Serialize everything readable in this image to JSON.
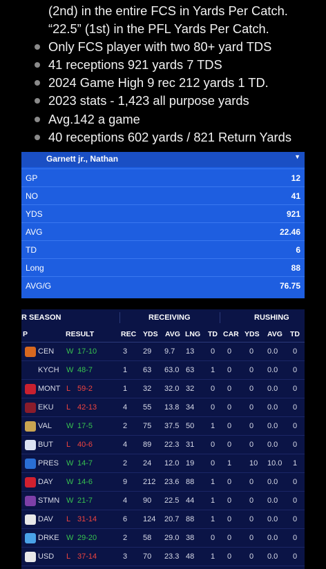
{
  "notes": [
    {
      "text": "(2nd) in the entire FCS in Yards Per Catch.",
      "bullet": false
    },
    {
      "text": "“22.5” (1st) in the PFL Yards Per Catch.",
      "bullet": false
    },
    {
      "text": "Only FCS player with two 80+ yard TDS",
      "bullet": true
    },
    {
      "text": "41 receptions 921 yards 7 TDS",
      "bullet": true
    },
    {
      "text": "2024 Game High 9 rec 212 yards 1 TD.",
      "bullet": true
    },
    {
      "text": "2023 stats - 1,423 all purpose yards",
      "bullet": true
    },
    {
      "text": "Avg.142 a game",
      "bullet": true
    },
    {
      "text": "40 receptions 602 yards / 821 Return Yards",
      "bullet": true
    }
  ],
  "card": {
    "player": "Garnett jr., Nathan",
    "caret_icon": "chevron-down-icon",
    "rows": [
      {
        "label": "GP",
        "value": "12"
      },
      {
        "label": "NO",
        "value": "41"
      },
      {
        "label": "YDS",
        "value": "921"
      },
      {
        "label": "AVG",
        "value": "22.46"
      },
      {
        "label": "TD",
        "value": "6"
      },
      {
        "label": "Long",
        "value": "88"
      },
      {
        "label": "AVG/G",
        "value": "76.75"
      }
    ]
  },
  "gamelog": {
    "group_season": "R SEASON",
    "group_receiving": "RECEIVING",
    "group_rushing": "RUSHING",
    "headers": [
      "P",
      "RESULT",
      "REC",
      "YDS",
      "AVG",
      "LNG",
      "TD",
      "CAR",
      "YDS",
      "AVG",
      "TD"
    ],
    "colors": {
      "win": "#37c24f",
      "loss": "#f0443f",
      "bg": "#0b1446"
    },
    "rows": [
      {
        "opp": "CEN",
        "wl": "W",
        "score": "17-10",
        "rec": "3",
        "yds": "29",
        "avg": "9.7",
        "lng": "13",
        "td": "0",
        "car": "0",
        "ryds": "0",
        "ravg": "0.0",
        "rtd": "0",
        "logo": "#d8681f"
      },
      {
        "opp": "KYCH",
        "wl": "W",
        "score": "48-7",
        "rec": "1",
        "yds": "63",
        "avg": "63.0",
        "lng": "63",
        "td": "1",
        "car": "0",
        "ryds": "0",
        "ravg": "0.0",
        "rtd": "0",
        "logo": ""
      },
      {
        "opp": "MONT",
        "wl": "L",
        "score": "59-2",
        "rec": "1",
        "yds": "32",
        "avg": "32.0",
        "lng": "32",
        "td": "0",
        "car": "0",
        "ryds": "0",
        "ravg": "0.0",
        "rtd": "0",
        "logo": "#c8202f"
      },
      {
        "opp": "EKU",
        "wl": "L",
        "score": "42-13",
        "rec": "4",
        "yds": "55",
        "avg": "13.8",
        "lng": "34",
        "td": "0",
        "car": "0",
        "ryds": "0",
        "ravg": "0.0",
        "rtd": "0",
        "logo": "#8a1c2b"
      },
      {
        "opp": "VAL",
        "wl": "W",
        "score": "17-5",
        "rec": "2",
        "yds": "75",
        "avg": "37.5",
        "lng": "50",
        "td": "1",
        "car": "0",
        "ryds": "0",
        "ravg": "0.0",
        "rtd": "0",
        "logo": "#c9a451"
      },
      {
        "opp": "BUT",
        "wl": "L",
        "score": "40-6",
        "rec": "4",
        "yds": "89",
        "avg": "22.3",
        "lng": "31",
        "td": "0",
        "car": "0",
        "ryds": "0",
        "ravg": "0.0",
        "rtd": "0",
        "logo": "#dce3f2"
      },
      {
        "opp": "PRES",
        "wl": "W",
        "score": "14-7",
        "rec": "2",
        "yds": "24",
        "avg": "12.0",
        "lng": "19",
        "td": "0",
        "car": "1",
        "ryds": "10",
        "ravg": "10.0",
        "rtd": "1",
        "logo": "#2a6fd6"
      },
      {
        "opp": "DAY",
        "wl": "W",
        "score": "14-6",
        "rec": "9",
        "yds": "212",
        "avg": "23.6",
        "lng": "88",
        "td": "1",
        "car": "0",
        "ryds": "0",
        "ravg": "0.0",
        "rtd": "0",
        "logo": "#d1202f"
      },
      {
        "opp": "STMN",
        "wl": "W",
        "score": "21-7",
        "rec": "4",
        "yds": "90",
        "avg": "22.5",
        "lng": "44",
        "td": "1",
        "car": "0",
        "ryds": "0",
        "ravg": "0.0",
        "rtd": "0",
        "logo": "#7d3fa8"
      },
      {
        "opp": "DAV",
        "wl": "L",
        "score": "31-14",
        "rec": "6",
        "yds": "124",
        "avg": "20.7",
        "lng": "88",
        "td": "1",
        "car": "0",
        "ryds": "0",
        "ravg": "0.0",
        "rtd": "0",
        "logo": "#e8e8e8"
      },
      {
        "opp": "DRKE",
        "wl": "W",
        "score": "29-20",
        "rec": "2",
        "yds": "58",
        "avg": "29.0",
        "lng": "38",
        "td": "0",
        "car": "0",
        "ryds": "0",
        "ravg": "0.0",
        "rtd": "0",
        "logo": "#4aa3e8"
      },
      {
        "opp": "USD",
        "wl": "L",
        "score": "37-14",
        "rec": "3",
        "yds": "70",
        "avg": "23.3",
        "lng": "48",
        "td": "1",
        "car": "0",
        "ryds": "0",
        "ravg": "0.0",
        "rtd": "0",
        "logo": "#e8e8e8"
      }
    ]
  }
}
